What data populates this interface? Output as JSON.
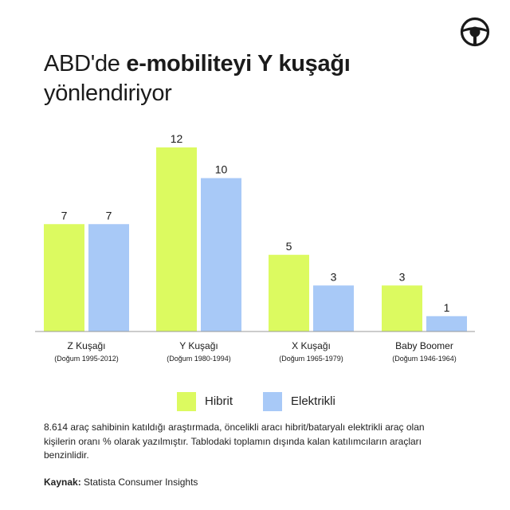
{
  "title": {
    "part1": "ABD'de ",
    "bold": "e-mobiliteyi Y kuşağı",
    "part2": "yönlendiriyor"
  },
  "logo_icon": "steering-wheel-icon",
  "colors": {
    "hibrit": "#dcfa60",
    "elektrikli": "#a8c9f7",
    "axis": "#999999",
    "text": "#1a1a1a"
  },
  "chart_data": {
    "type": "bar",
    "title": "ABD'de e-mobiliteyi Y kuşağı yönlendiriyor",
    "categories": [
      "Z Kuşağı",
      "Y Kuşağı",
      "X Kuşağı",
      "Baby Boomer"
    ],
    "category_sublabels": [
      "(Doğum 1995-2012)",
      "(Doğum 1980-1994)",
      "(Doğum 1965-1979)",
      "(Doğum 1946-1964)"
    ],
    "series": [
      {
        "name": "Hibrit",
        "values": [
          7,
          12,
          5,
          3
        ]
      },
      {
        "name": "Elektrikli",
        "values": [
          7,
          10,
          3,
          1
        ]
      }
    ],
    "ylim": [
      0,
      12
    ],
    "xlabel": "",
    "ylabel": "",
    "data_labels": true,
    "legend": "bottom",
    "grid": false
  },
  "legend": {
    "items": [
      {
        "label": "Hibrit"
      },
      {
        "label": "Elektrikli"
      }
    ]
  },
  "note": "8.614 araç sahibinin katıldığı araştırmada, öncelikli aracı hibrit/bataryalı elektrikli araç olan kişilerin oranı % olarak yazılmıştır. Tablodaki toplamın dışında kalan katılımcıların araçları benzinlidir.",
  "source": {
    "label": "Kaynak:",
    "value": "Statista Consumer Insights"
  }
}
